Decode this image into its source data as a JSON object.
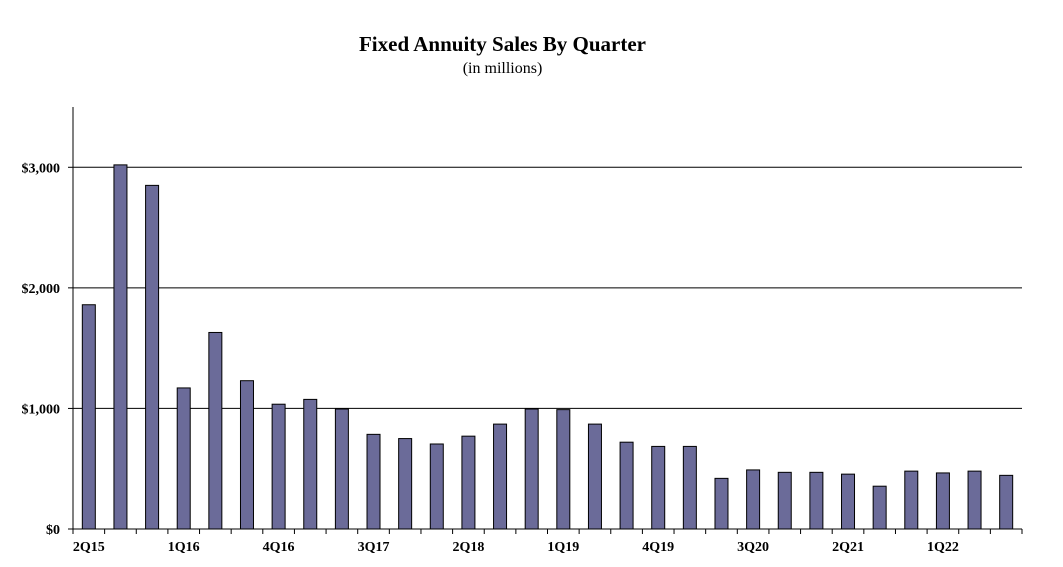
{
  "chart_data": {
    "type": "bar",
    "title": "Fixed Annuity Sales By Quarter",
    "subtitle": "(in millions)",
    "xlabel": "",
    "ylabel": "",
    "ylim": [
      0,
      3500
    ],
    "yticks": [
      0,
      1000,
      2000,
      3000
    ],
    "ytick_labels": [
      "$0",
      "$1,000",
      "$2,000",
      "$3,000"
    ],
    "grid": "horizontal",
    "categories": [
      "2Q15",
      "3Q15",
      "4Q15",
      "1Q16",
      "2Q16",
      "3Q16",
      "4Q16",
      "1Q17",
      "2Q17",
      "3Q17",
      "4Q17",
      "1Q18",
      "2Q18",
      "3Q18",
      "4Q18",
      "1Q19",
      "2Q19",
      "3Q19",
      "4Q19",
      "1Q20",
      "2Q20",
      "3Q20",
      "4Q20",
      "1Q21",
      "2Q21",
      "3Q21",
      "4Q21",
      "1Q22",
      "2Q22",
      "3Q22"
    ],
    "xtick_labels": [
      "2Q15",
      "1Q16",
      "4Q16",
      "3Q17",
      "2Q18",
      "1Q19",
      "4Q19",
      "3Q20",
      "2Q21",
      "1Q22"
    ],
    "values": [
      1860,
      3020,
      2850,
      1170,
      1630,
      1230,
      1035,
      1075,
      995,
      785,
      750,
      705,
      770,
      870,
      995,
      990,
      870,
      720,
      685,
      685,
      420,
      490,
      470,
      470,
      455,
      355,
      480,
      465,
      480,
      445
    ],
    "bar_color": "#6b6b99"
  }
}
